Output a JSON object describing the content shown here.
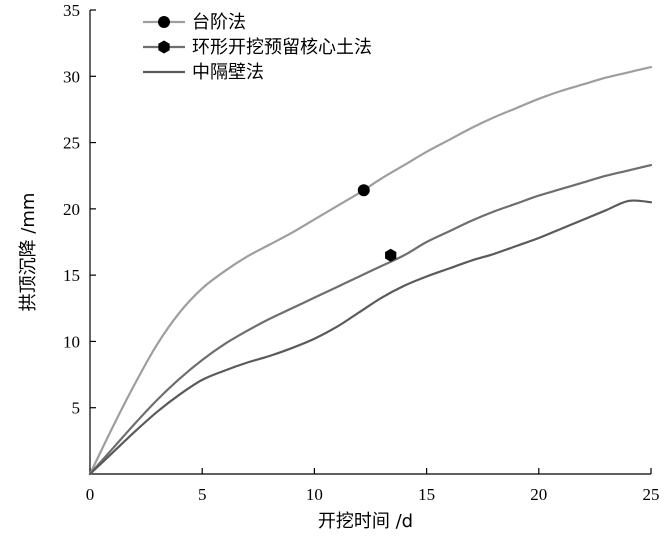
{
  "chart_data": {
    "type": "line",
    "xlabel": "开挖时间 /d",
    "ylabel": "拱顶沉降 /mm",
    "xlim": [
      0,
      25
    ],
    "ylim": [
      0,
      35
    ],
    "xticks": [
      0,
      5,
      10,
      15,
      20,
      25
    ],
    "yticks": [
      5,
      10,
      15,
      20,
      25,
      30,
      35
    ],
    "grid": false,
    "legend_position": "top-left",
    "series": [
      {
        "name": "台阶法",
        "color": "#9e9e9e",
        "marker": "circle",
        "marker_at": [
          12.2,
          21.4
        ],
        "x": [
          0,
          1,
          2,
          3,
          4,
          5,
          6,
          7,
          8,
          9,
          10,
          11,
          12,
          13,
          14,
          15,
          16,
          17,
          18,
          19,
          20,
          21,
          22,
          23,
          24,
          25
        ],
        "y": [
          0,
          3.5,
          6.8,
          9.8,
          12.2,
          14.0,
          15.3,
          16.4,
          17.3,
          18.2,
          19.2,
          20.2,
          21.2,
          22.3,
          23.3,
          24.3,
          25.2,
          26.1,
          26.9,
          27.6,
          28.3,
          28.9,
          29.4,
          29.9,
          30.3,
          30.7
        ]
      },
      {
        "name": "环形开挖预留核心土法",
        "color": "#6e6e6e",
        "marker": "hexagon",
        "marker_at": [
          13.4,
          16.5
        ],
        "x": [
          0,
          1,
          2,
          3,
          4,
          5,
          6,
          7,
          8,
          9,
          10,
          11,
          12,
          13,
          14,
          15,
          16,
          17,
          18,
          19,
          20,
          21,
          22,
          23,
          24,
          25
        ],
        "y": [
          0,
          1.9,
          3.8,
          5.6,
          7.2,
          8.6,
          9.8,
          10.8,
          11.7,
          12.5,
          13.3,
          14.1,
          14.9,
          15.7,
          16.5,
          17.5,
          18.3,
          19.1,
          19.8,
          20.4,
          21.0,
          21.5,
          22.0,
          22.5,
          22.9,
          23.3
        ]
      },
      {
        "name": "中隔壁法",
        "color": "#5a5a5a",
        "marker": "none",
        "x": [
          0,
          1,
          2,
          3,
          4,
          5,
          6,
          7,
          8,
          9,
          10,
          11,
          12,
          13,
          14,
          15,
          16,
          17,
          18,
          19,
          20,
          21,
          22,
          23,
          24,
          25
        ],
        "y": [
          0,
          1.6,
          3.2,
          4.7,
          6.0,
          7.1,
          7.8,
          8.4,
          8.9,
          9.5,
          10.2,
          11.1,
          12.2,
          13.3,
          14.2,
          14.9,
          15.5,
          16.1,
          16.6,
          17.2,
          17.8,
          18.5,
          19.2,
          19.9,
          20.6,
          20.5
        ]
      }
    ]
  }
}
